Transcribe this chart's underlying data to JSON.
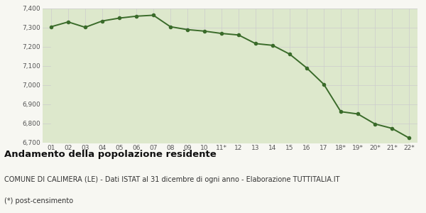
{
  "x_labels": [
    "01",
    "02",
    "03",
    "04",
    "05",
    "06",
    "07",
    "08",
    "09",
    "10",
    "11*",
    "12",
    "13",
    "14",
    "15",
    "16",
    "17",
    "18*",
    "19*",
    "20*",
    "21*",
    "22*"
  ],
  "y_values": [
    7305,
    7330,
    7302,
    7335,
    7350,
    7360,
    7365,
    7305,
    7290,
    7282,
    7270,
    7262,
    7217,
    7208,
    7162,
    7090,
    7005,
    6862,
    6850,
    6798,
    6775,
    6725
  ],
  "line_color": "#3a6b2a",
  "fill_color": "#dde8cc",
  "marker": "o",
  "marker_size": 3,
  "line_width": 1.4,
  "ylim": [
    6700,
    7400
  ],
  "yticks": [
    6700,
    6800,
    6900,
    7000,
    7100,
    7200,
    7300,
    7400
  ],
  "grid_color": "#cccccc",
  "bg_color": "#f7f7f2",
  "title": "Andamento della popolazione residente",
  "subtitle": "COMUNE DI CALIMERA (LE) - Dati ISTAT al 31 dicembre di ogni anno - Elaborazione TUTTITALIA.IT",
  "footnote": "(*) post-censimento",
  "title_fontsize": 9.5,
  "subtitle_fontsize": 7,
  "footnote_fontsize": 7
}
